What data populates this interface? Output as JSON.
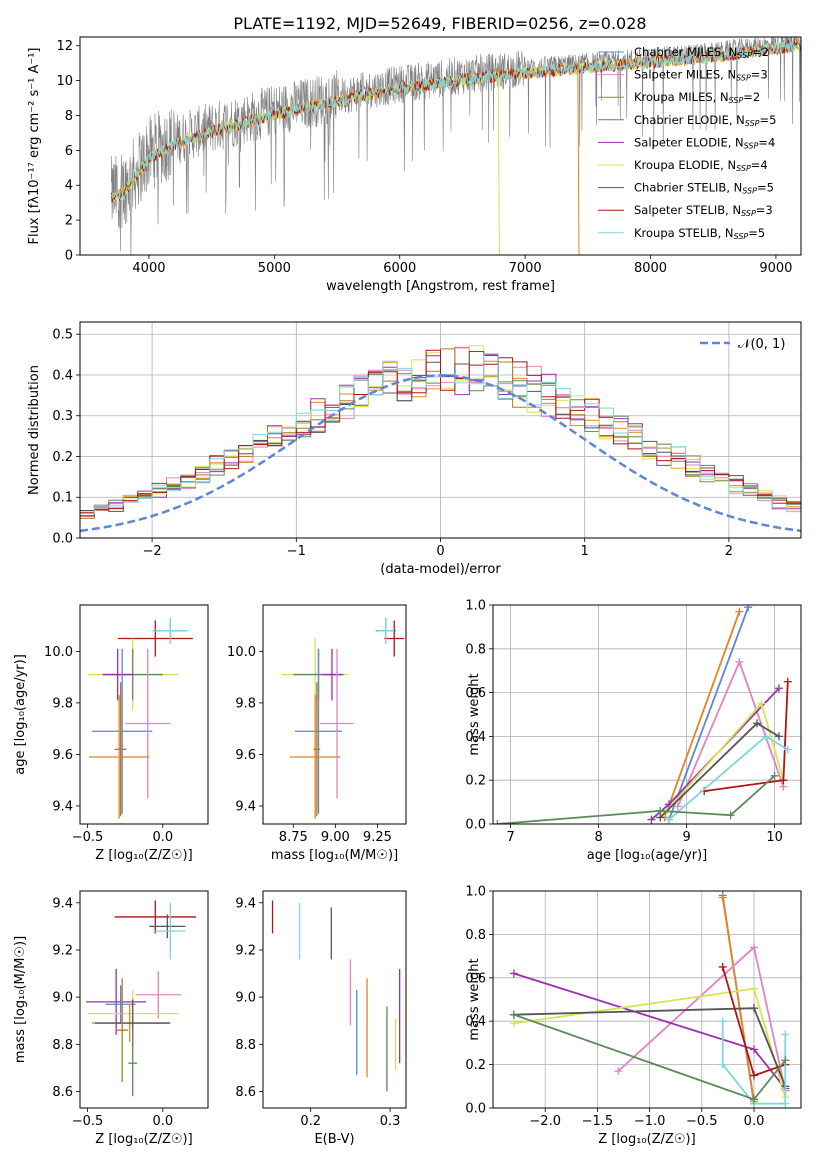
{
  "figure_title": "PLATE=1192, MJD=52649, FIBERID=0256, z=0.028",
  "series_colors": [
    "#5b86d9",
    "#e8821e",
    "#e284c3",
    "#b27b1f",
    "#5b8a5b",
    "#9b30b0",
    "#d6e44e",
    "#555555",
    "#b01515",
    "#7fd6de"
  ],
  "chart_data": [
    {
      "type": "line",
      "id": "spectrum",
      "title": "PLATE=1192, MJD=52649, FIBERID=0256, z=0.028",
      "xlabel": "wavelength [Angstrom, rest frame]",
      "ylabel": "Flux [fλ10⁻¹⁷ erg cm⁻² s⁻¹ A⁻¹]",
      "xlim": [
        3450,
        9200
      ],
      "ylim": [
        0,
        12.5
      ],
      "xticks": [
        4000,
        5000,
        6000,
        7000,
        8000,
        9000
      ],
      "yticks": [
        0,
        2,
        4,
        6,
        8,
        10,
        12
      ],
      "legend_position": "right",
      "legend": [
        {
          "label": "Chabrier MILES, N",
          "sub": "SSP",
          "suffix": "=2",
          "color": "#5b86d9"
        },
        {
          "label": "Salpeter MILES, N",
          "sub": "SSP",
          "suffix": "=3",
          "color": "#e284c3"
        },
        {
          "label": "Kroupa MILES, N",
          "sub": "SSP",
          "suffix": "=2",
          "color": "#b27b1f"
        },
        {
          "label": "Chabrier ELODIE, N",
          "sub": "SSP",
          "suffix": "=5",
          "color": "#5b8a5b"
        },
        {
          "label": "Salpeter ELODIE, N",
          "sub": "SSP",
          "suffix": "=4",
          "color": "#9b30b0"
        },
        {
          "label": "Kroupa ELODIE, N",
          "sub": "SSP",
          "suffix": "=4",
          "color": "#d6e44e"
        },
        {
          "label": "Chabrier STELIB, N",
          "sub": "SSP",
          "suffix": "=5",
          "color": "#555555"
        },
        {
          "label": "Salpeter STELIB, N",
          "sub": "SSP",
          "suffix": "=3",
          "color": "#b01515"
        },
        {
          "label": "Kroupa STELIB, N",
          "sub": "SSP",
          "suffix": "=5",
          "color": "#7fd6de"
        }
      ],
      "continuum": [
        {
          "x": 3700,
          "y": 3.5
        },
        {
          "x": 3800,
          "y": 3.8
        },
        {
          "x": 3900,
          "y": 4.8
        },
        {
          "x": 4000,
          "y": 5.8
        },
        {
          "x": 4200,
          "y": 6.6
        },
        {
          "x": 4500,
          "y": 7.3
        },
        {
          "x": 5000,
          "y": 8.3
        },
        {
          "x": 5500,
          "y": 9.1
        },
        {
          "x": 6000,
          "y": 9.8
        },
        {
          "x": 6500,
          "y": 10.3
        },
        {
          "x": 7000,
          "y": 10.7
        },
        {
          "x": 7500,
          "y": 11.0
        },
        {
          "x": 8000,
          "y": 11.3
        },
        {
          "x": 8500,
          "y": 11.6
        },
        {
          "x": 9000,
          "y": 12.1
        },
        {
          "x": 9200,
          "y": 12.3
        }
      ],
      "dropouts": [
        {
          "x": 6785,
          "series": "Kroupa ELODIE"
        },
        {
          "x": 7420,
          "series": "Kroupa MILES"
        }
      ]
    },
    {
      "type": "histogram",
      "id": "residuals",
      "xlabel": "(data-model)/error",
      "ylabel": "Normed distribution",
      "xlim": [
        -2.5,
        2.5
      ],
      "ylim": [
        0,
        0.53
      ],
      "xticks": [
        -2,
        -1,
        0,
        1,
        2
      ],
      "yticks": [
        0.0,
        0.1,
        0.2,
        0.3,
        0.4,
        0.5
      ],
      "grid": true,
      "legend_position": "top-right",
      "bin_width": 0.1,
      "reference": {
        "label": "𝒩(0, 1)",
        "color": "#5b86d9"
      },
      "base_values": [
        0.02,
        0.03,
        0.04,
        0.05,
        0.055,
        0.06,
        0.07,
        0.08,
        0.09,
        0.1,
        0.115,
        0.13,
        0.145,
        0.16,
        0.175,
        0.19,
        0.21,
        0.225,
        0.245,
        0.26,
        0.28,
        0.3,
        0.315,
        0.33,
        0.35,
        0.365,
        0.38,
        0.39,
        0.4,
        0.41,
        0.42,
        0.415,
        0.41,
        0.4,
        0.39,
        0.38,
        0.365,
        0.35,
        0.33,
        0.315,
        0.3,
        0.28,
        0.26,
        0.245,
        0.225,
        0.21,
        0.19,
        0.175,
        0.16,
        0.145,
        0.13,
        0.115,
        0.1,
        0.09,
        0.08,
        0.07,
        0.06,
        0.05,
        0.04,
        0.03
      ]
    },
    {
      "type": "scatter-errorbar",
      "id": "age-vs-Z",
      "xlabel": "Z [log₁₀(Z/Z☉)]",
      "ylabel": "age  [log₁₀(age/yr)]",
      "xlim": [
        -0.55,
        0.3
      ],
      "ylim": [
        9.33,
        10.18
      ],
      "xticks": [
        -0.5,
        0.0
      ],
      "yticks": [
        9.4,
        9.6,
        9.8,
        10.0
      ],
      "points": [
        {
          "x": 0.05,
          "y": 10.08,
          "xerr": 0.1,
          "yerr": 0.05,
          "color": "#5b86d9"
        },
        {
          "x": -0.05,
          "y": 10.05,
          "xerr": 0.25,
          "yerr": 0.07,
          "color": "#b01515"
        },
        {
          "x": 0.05,
          "y": 10.08,
          "xerr": 0.12,
          "yerr": 0.05,
          "color": "#7fd6de"
        },
        {
          "x": -0.2,
          "y": 9.91,
          "xerr": 0.3,
          "yerr": 0.14,
          "color": "#d6e44e"
        },
        {
          "x": -0.2,
          "y": 9.91,
          "xerr": 0.2,
          "yerr": 0.1,
          "color": "#5b8a5b"
        },
        {
          "x": -0.3,
          "y": 9.91,
          "xerr": 0.1,
          "yerr": 0.1,
          "color": "#9b30b0"
        },
        {
          "x": -0.27,
          "y": 9.69,
          "xerr": 0.2,
          "yerr": 0.32,
          "color": "#5b86d9"
        },
        {
          "x": -0.1,
          "y": 9.72,
          "xerr": 0.15,
          "yerr": 0.29,
          "color": "#e284c3"
        },
        {
          "x": -0.29,
          "y": 9.59,
          "xerr": 0.2,
          "yerr": 0.24,
          "color": "#e8821e"
        },
        {
          "x": -0.28,
          "y": 9.62,
          "xerr": 0.04,
          "yerr": 0.26,
          "color": "#b27b1f"
        }
      ]
    },
    {
      "type": "scatter-errorbar",
      "id": "age-vs-mass",
      "xlabel": "mass [log₁₀(M/M☉)]",
      "ylabel": "",
      "xlim": [
        8.57,
        9.42
      ],
      "ylim": [
        9.33,
        10.18
      ],
      "xticks": [
        8.75,
        9.0,
        9.25
      ],
      "yticks": [
        9.4,
        9.6,
        9.8,
        10.0
      ],
      "points": [
        {
          "x": 9.3,
          "y": 10.08,
          "xerr": 0.06,
          "yerr": 0.05,
          "color": "#5b86d9"
        },
        {
          "x": 9.35,
          "y": 10.05,
          "xerr": 0.06,
          "yerr": 0.07,
          "color": "#b01515"
        },
        {
          "x": 9.3,
          "y": 10.08,
          "xerr": 0.05,
          "yerr": 0.05,
          "color": "#7fd6de"
        },
        {
          "x": 8.88,
          "y": 9.91,
          "xerr": 0.2,
          "yerr": 0.14,
          "color": "#d6e44e"
        },
        {
          "x": 8.9,
          "y": 9.91,
          "xerr": 0.15,
          "yerr": 0.1,
          "color": "#5b8a5b"
        },
        {
          "x": 8.98,
          "y": 9.91,
          "xerr": 0.06,
          "yerr": 0.1,
          "color": "#9b30b0"
        },
        {
          "x": 8.9,
          "y": 9.69,
          "xerr": 0.14,
          "yerr": 0.32,
          "color": "#5b86d9"
        },
        {
          "x": 9.01,
          "y": 9.72,
          "xerr": 0.1,
          "yerr": 0.29,
          "color": "#e284c3"
        },
        {
          "x": 8.88,
          "y": 9.59,
          "xerr": 0.15,
          "yerr": 0.24,
          "color": "#e8821e"
        },
        {
          "x": 8.89,
          "y": 9.62,
          "xerr": 0.02,
          "yerr": 0.26,
          "color": "#b27b1f"
        }
      ]
    },
    {
      "type": "line",
      "id": "weight-vs-age",
      "xlabel": "age  [log₁₀(age/yr)]",
      "ylabel": "mass weight",
      "xlim": [
        6.8,
        10.3
      ],
      "ylim": [
        0,
        1
      ],
      "xticks": [
        7,
        8,
        9,
        10
      ],
      "yticks": [
        0.0,
        0.2,
        0.4,
        0.6,
        0.8,
        1.0
      ],
      "grid": true,
      "series": [
        {
          "color": "#5b86d9",
          "points": [
            [
              8.8,
              0.02
            ],
            [
              9.7,
              0.99
            ]
          ]
        },
        {
          "color": "#e8821e",
          "points": [
            [
              8.75,
              0.03
            ],
            [
              9.6,
              0.97
            ]
          ]
        },
        {
          "color": "#e284c3",
          "points": [
            [
              8.9,
              0.08
            ],
            [
              9.6,
              0.74
            ],
            [
              10.1,
              0.17
            ]
          ]
        },
        {
          "color": "#9b30b0",
          "points": [
            [
              8.6,
              0.02
            ],
            [
              8.8,
              0.09
            ],
            [
              10.05,
              0.62
            ]
          ]
        },
        {
          "color": "#d6e44e",
          "points": [
            [
              8.75,
              0.05
            ],
            [
              9.85,
              0.55
            ],
            [
              10.1,
              0.2
            ]
          ]
        },
        {
          "color": "#555555",
          "points": [
            [
              8.7,
              0.03
            ],
            [
              9.8,
              0.46
            ],
            [
              10.05,
              0.4
            ]
          ]
        },
        {
          "color": "#b01515",
          "points": [
            [
              9.2,
              0.15
            ],
            [
              10.1,
              0.2
            ],
            [
              10.15,
              0.65
            ]
          ]
        },
        {
          "color": "#7fd6de",
          "points": [
            [
              8.8,
              0.02
            ],
            [
              9.9,
              0.4
            ],
            [
              10.15,
              0.34
            ]
          ]
        },
        {
          "color": "#5b8a5b",
          "points": [
            [
              6.85,
              0.0
            ],
            [
              8.7,
              0.06
            ],
            [
              9.5,
              0.04
            ],
            [
              10.0,
              0.22
            ]
          ]
        }
      ]
    },
    {
      "type": "scatter-errorbar",
      "id": "mass-vs-Z",
      "xlabel": "Z [log₁₀(Z/Z☉)]",
      "ylabel": "mass [log₁₀(M/M☉)]",
      "xlim": [
        -0.55,
        0.3
      ],
      "ylim": [
        8.53,
        9.45
      ],
      "xticks": [
        -0.5,
        0.0
      ],
      "yticks": [
        8.6,
        8.8,
        9.0,
        9.2,
        9.4
      ],
      "points": [
        {
          "x": -0.05,
          "y": 9.34,
          "xerr": 0.27,
          "yerr": 0.07,
          "color": "#b01515"
        },
        {
          "x": 0.03,
          "y": 9.3,
          "xerr": 0.12,
          "yerr": 0.05,
          "color": "#555555"
        },
        {
          "x": 0.05,
          "y": 9.28,
          "xerr": 0.1,
          "yerr": 0.12,
          "color": "#7fd6de"
        },
        {
          "x": -0.03,
          "y": 9.01,
          "xerr": 0.15,
          "yerr": 0.1,
          "color": "#e284c3"
        },
        {
          "x": -0.31,
          "y": 8.98,
          "xerr": 0.2,
          "yerr": 0.14,
          "color": "#9b30b0"
        },
        {
          "x": -0.28,
          "y": 8.97,
          "xerr": 0.1,
          "yerr": 0.08,
          "color": "#5b86d9"
        },
        {
          "x": -0.2,
          "y": 8.93,
          "xerr": 0.3,
          "yerr": 0.1,
          "color": "#d6e44e"
        },
        {
          "x": -0.22,
          "y": 8.89,
          "xerr": 0.25,
          "yerr": 0.08,
          "color": "#e8821e"
        },
        {
          "x": -0.2,
          "y": 8.89,
          "xerr": 0.25,
          "yerr": 0.1,
          "color": "#555555"
        },
        {
          "x": -0.27,
          "y": 8.86,
          "xerr": 0.04,
          "yerr": 0.22,
          "color": "#b27b1f"
        },
        {
          "x": -0.2,
          "y": 8.72,
          "xerr": 0.03,
          "yerr": 0.14,
          "color": "#5b8a5b"
        }
      ]
    },
    {
      "type": "scatter-errorbar",
      "id": "mass-vs-ebv",
      "xlabel": "E(B-V)",
      "ylabel": "",
      "xlim": [
        0.14,
        0.32
      ],
      "ylim": [
        8.53,
        9.45
      ],
      "xticks": [
        0.2,
        0.3
      ],
      "yticks": [
        8.6,
        8.8,
        9.0,
        9.2,
        9.4
      ],
      "points": [
        {
          "x": 0.152,
          "y": 9.34,
          "xerr": 0,
          "yerr": 0.07,
          "color": "#b01515"
        },
        {
          "x": 0.186,
          "y": 9.28,
          "xerr": 0,
          "yerr": 0.12,
          "color": "#7fd6de"
        },
        {
          "x": 0.226,
          "y": 9.27,
          "xerr": 0,
          "yerr": 0.11,
          "color": "#555555"
        },
        {
          "x": 0.25,
          "y": 9.02,
          "xerr": 0,
          "yerr": 0.14,
          "color": "#e284c3"
        },
        {
          "x": 0.258,
          "y": 8.85,
          "xerr": 0,
          "yerr": 0.18,
          "color": "#5b86d9"
        },
        {
          "x": 0.271,
          "y": 8.87,
          "xerr": 0,
          "yerr": 0.21,
          "color": "#e8821e"
        },
        {
          "x": 0.296,
          "y": 8.78,
          "xerr": 0,
          "yerr": 0.18,
          "color": "#5b8a5b"
        },
        {
          "x": 0.307,
          "y": 8.8,
          "xerr": 0,
          "yerr": 0.11,
          "color": "#d6e44e"
        },
        {
          "x": 0.312,
          "y": 8.92,
          "xerr": 0,
          "yerr": 0.2,
          "color": "#9b30b0"
        }
      ]
    },
    {
      "type": "line",
      "id": "weight-vs-Z",
      "xlabel": "Z [log₁₀(Z/Z☉)]",
      "ylabel": "mass weight",
      "xlim": [
        -2.5,
        0.45
      ],
      "ylim": [
        0,
        1
      ],
      "xticks": [
        -2.0,
        -1.5,
        -1.0,
        -0.5,
        0.0
      ],
      "yticks": [
        0.0,
        0.2,
        0.4,
        0.6,
        0.8,
        1.0
      ],
      "grid": true,
      "series": [
        {
          "color": "#5b86d9",
          "points": [
            [
              -0.3,
              0.98
            ],
            [
              0.0,
              0.02
            ]
          ]
        },
        {
          "color": "#e8821e",
          "points": [
            [
              -0.3,
              0.97
            ],
            [
              0.0,
              0.03
            ]
          ]
        },
        {
          "color": "#e284c3",
          "points": [
            [
              -1.3,
              0.17
            ],
            [
              0.0,
              0.74
            ],
            [
              0.3,
              0.08
            ]
          ]
        },
        {
          "color": "#9b30b0",
          "points": [
            [
              -2.3,
              0.62
            ],
            [
              0.0,
              0.27
            ],
            [
              0.3,
              0.09
            ]
          ]
        },
        {
          "color": "#d6e44e",
          "points": [
            [
              -2.3,
              0.39
            ],
            [
              0.0,
              0.55
            ],
            [
              0.3,
              0.05
            ]
          ]
        },
        {
          "color": "#555555",
          "points": [
            [
              -2.3,
              0.43
            ],
            [
              0.0,
              0.46
            ],
            [
              0.3,
              0.1
            ]
          ]
        },
        {
          "color": "#b01515",
          "points": [
            [
              -0.3,
              0.65
            ],
            [
              0.0,
              0.15
            ],
            [
              0.3,
              0.2
            ]
          ]
        },
        {
          "color": "#7fd6de",
          "points": [
            [
              -0.3,
              0.4
            ],
            [
              -0.3,
              0.2
            ],
            [
              0.0,
              0.02
            ],
            [
              0.3,
              0.02
            ],
            [
              0.3,
              0.34
            ]
          ]
        },
        {
          "color": "#5b8a5b",
          "points": [
            [
              -2.3,
              0.43
            ],
            [
              0.0,
              0.04
            ],
            [
              0.3,
              0.22
            ]
          ]
        }
      ]
    }
  ]
}
